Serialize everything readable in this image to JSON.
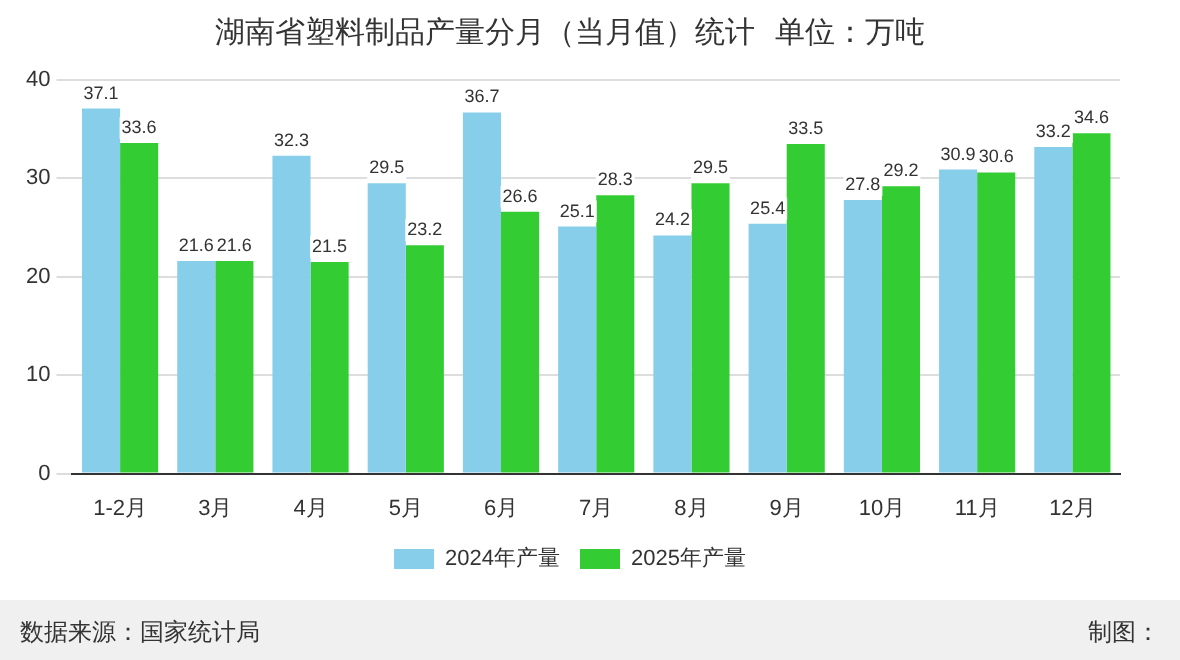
{
  "chart_data": {
    "type": "bar",
    "title": "湖南省塑料制品产量分月（当月值）统计  单位：万吨",
    "categories": [
      "1-2月",
      "3月",
      "4月",
      "5月",
      "6月",
      "7月",
      "8月",
      "9月",
      "10月",
      "11月",
      "12月"
    ],
    "series": [
      {
        "name": "2024年产量",
        "color": "#87ceeb",
        "values": [
          37.1,
          21.6,
          32.3,
          29.5,
          36.7,
          25.1,
          24.2,
          25.4,
          27.8,
          30.9,
          33.2
        ]
      },
      {
        "name": "2025年产量",
        "color": "#33cc33",
        "values": [
          33.6,
          21.6,
          21.5,
          23.2,
          26.6,
          28.3,
          29.5,
          33.5,
          29.2,
          30.6,
          34.6
        ]
      }
    ],
    "ylim": [
      0,
      40
    ],
    "yticks": [
      0,
      10,
      20,
      30,
      40
    ],
    "grid": "y",
    "legend": "bottom",
    "data_labels": true,
    "annotations": [
      "数据来源：国家统计局",
      "制图："
    ]
  }
}
